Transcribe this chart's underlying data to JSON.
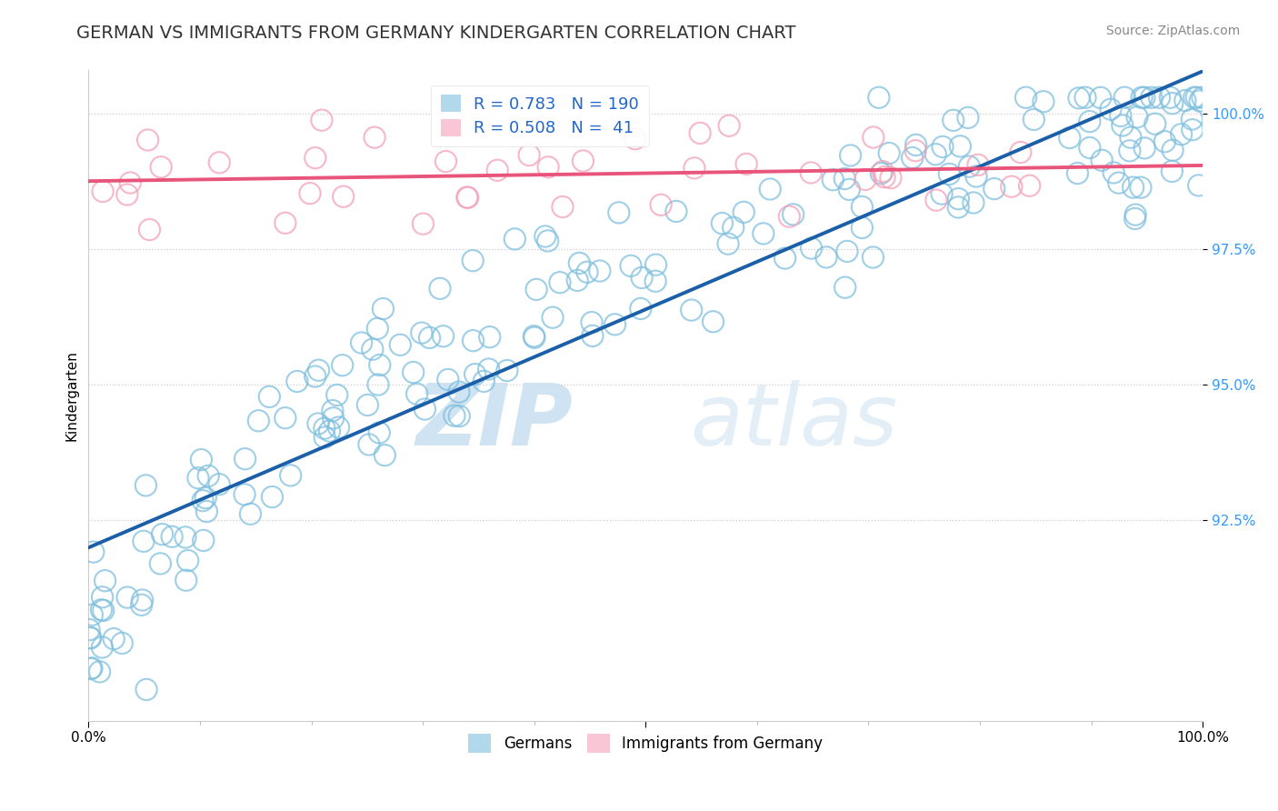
{
  "title": "GERMAN VS IMMIGRANTS FROM GERMANY KINDERGARTEN CORRELATION CHART",
  "source": "Source: ZipAtlas.com",
  "ylabel": "Kindergarten",
  "blue_R": 0.783,
  "blue_N": 190,
  "pink_R": 0.508,
  "pink_N": 41,
  "blue_color": "#7fbfdf",
  "blue_line_color": "#1a5fa8",
  "pink_color": "#f4a0b8",
  "pink_line_color": "#e8547a",
  "watermark_zip": "ZIP",
  "watermark_atlas": "atlas",
  "background_color": "#ffffff",
  "grid_color": "#cccccc",
  "title_fontsize": 14,
  "axis_fontsize": 11,
  "legend_fontsize": 12,
  "source_fontsize": 10,
  "y_ticks": [
    0.925,
    0.95,
    0.975,
    1.0
  ],
  "ylim_low": 0.888,
  "ylim_high": 1.008,
  "xlim_low": 0.0,
  "xlim_high": 1.0
}
